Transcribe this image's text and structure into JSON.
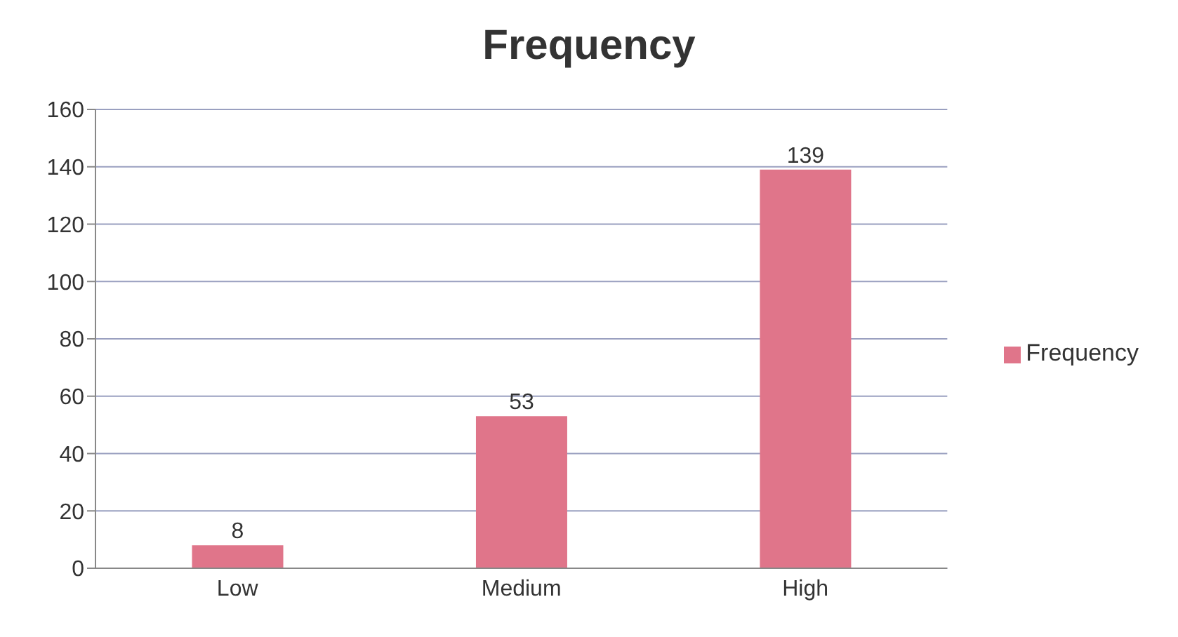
{
  "chart_data": {
    "type": "bar",
    "title": "Frequency",
    "categories": [
      "Low",
      "Medium",
      "High"
    ],
    "series": [
      {
        "name": "Frequency",
        "color": "#e0758a",
        "values": [
          8,
          53,
          139
        ]
      }
    ],
    "ylim": [
      0,
      160
    ],
    "yticks": [
      0,
      20,
      40,
      60,
      80,
      100,
      120,
      140,
      160
    ],
    "grid": "y",
    "legend": "right",
    "data_labels": true
  }
}
